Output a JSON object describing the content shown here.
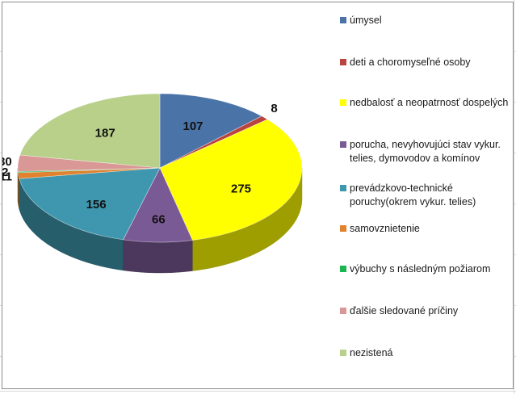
{
  "chart_data": {
    "type": "pie",
    "style": "3d",
    "title": "",
    "legend_position": "right",
    "slices": [
      {
        "label": "úmysel",
        "value": 107,
        "color": "#4a74a8"
      },
      {
        "label": "deti a choromyseľné osoby",
        "value": 8,
        "color": "#b8433f"
      },
      {
        "label": "nedbalosť a neopatrnosť dospelých",
        "value": 275,
        "color": "#ffff00"
      },
      {
        "label": "porucha, nevyhovujúci stav vykur. telies, dymovodov a komínov",
        "value": 66,
        "color": "#7a5a95"
      },
      {
        "label": "prevádzkovo-technické poruchy(okrem vykur. telies)",
        "value": 156,
        "color": "#3e97ae"
      },
      {
        "label": "samovznietenie",
        "value": 11,
        "color": "#e0822e"
      },
      {
        "label": "výbuchy s následným požiarom",
        "value": 2,
        "color": "#19b54f"
      },
      {
        "label": "ďalšie sledované príčiny",
        "value": 30,
        "color": "#d99795"
      },
      {
        "label": "nezistená",
        "value": 187,
        "color": "#b8d08a"
      }
    ]
  }
}
